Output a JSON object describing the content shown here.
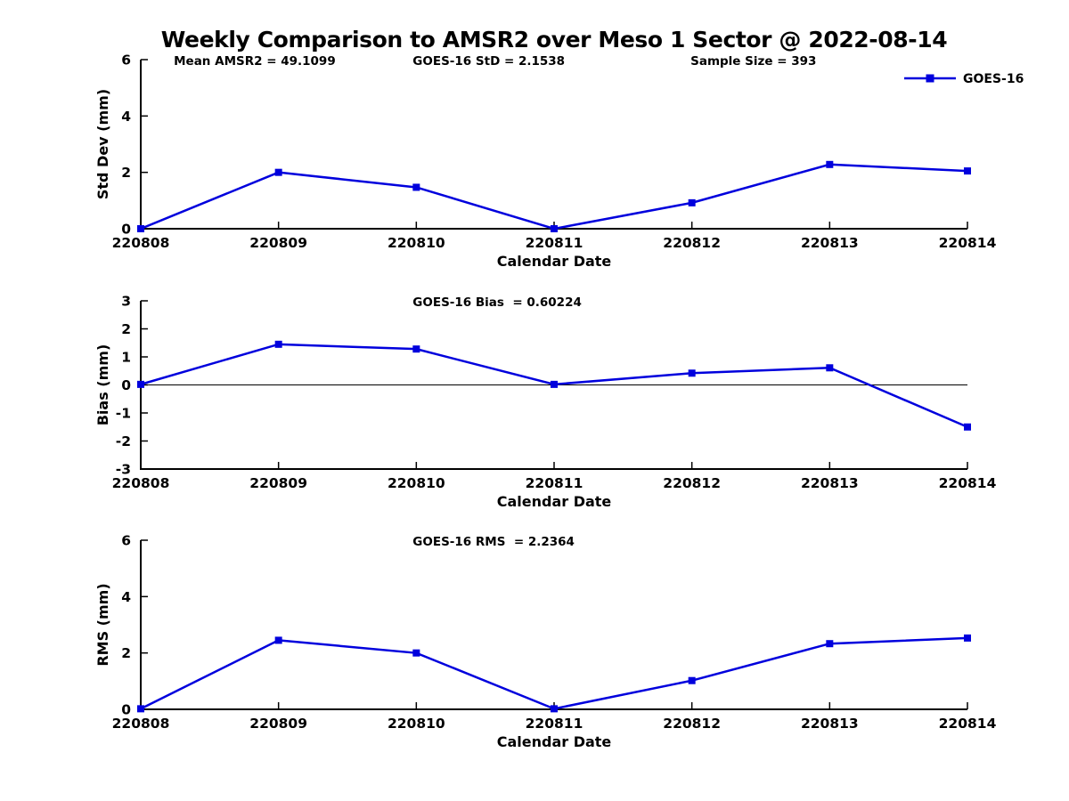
{
  "title": "Weekly Comparison to AMSR2 over Meso 1 Sector @ 2022-08-14",
  "colors": {
    "series_line": "#0000dd",
    "axis": "#000000",
    "text": "#000000",
    "background": "#ffffff"
  },
  "chart_data": [
    {
      "id": "std-dev",
      "type": "line",
      "ylabel": "Std Dev (mm)",
      "xlabel": "Calendar Date",
      "categories": [
        "220808",
        "220809",
        "220810",
        "220811",
        "220812",
        "220813",
        "220814"
      ],
      "series": [
        {
          "name": "GOES-16",
          "color": "#0000dd",
          "marker": "square",
          "values": [
            0.0,
            2.0,
            1.47,
            0.0,
            0.92,
            2.28,
            2.05
          ]
        }
      ],
      "ylim": [
        0,
        6
      ],
      "yticks": [
        0,
        2,
        4,
        6
      ],
      "grid": false,
      "zero_line": false,
      "annotations": [
        "Mean AMSR2 = 49.1099",
        "GOES-16 StD = 2.1538",
        "Sample Size = 393"
      ],
      "legend": {
        "visible": true,
        "label": "GOES-16",
        "position": "top-right"
      }
    },
    {
      "id": "bias",
      "type": "line",
      "ylabel": "Bias (mm)",
      "xlabel": "Calendar Date",
      "categories": [
        "220808",
        "220809",
        "220810",
        "220811",
        "220812",
        "220813",
        "220814"
      ],
      "series": [
        {
          "name": "GOES-16",
          "color": "#0000dd",
          "marker": "square",
          "values": [
            0.02,
            1.45,
            1.28,
            0.02,
            0.42,
            0.61,
            -1.5
          ]
        }
      ],
      "ylim": [
        -3,
        3
      ],
      "yticks": [
        -3,
        -2,
        -1,
        0,
        1,
        2,
        3
      ],
      "grid": false,
      "zero_line": true,
      "annotations": [
        "GOES-16 Bias  = 0.60224"
      ],
      "legend": {
        "visible": false,
        "label": "GOES-16"
      }
    },
    {
      "id": "rms",
      "type": "line",
      "ylabel": "RMS (mm)",
      "xlabel": "Calendar Date",
      "categories": [
        "220808",
        "220809",
        "220810",
        "220811",
        "220812",
        "220813",
        "220814"
      ],
      "series": [
        {
          "name": "GOES-16",
          "color": "#0000dd",
          "marker": "square",
          "values": [
            0.02,
            2.45,
            2.0,
            0.02,
            1.02,
            2.33,
            2.53
          ]
        }
      ],
      "ylim": [
        0,
        6
      ],
      "yticks": [
        0,
        2,
        4,
        6
      ],
      "grid": false,
      "zero_line": false,
      "annotations": [
        "GOES-16 RMS  = 2.2364"
      ],
      "legend": {
        "visible": false,
        "label": "GOES-16"
      }
    }
  ]
}
